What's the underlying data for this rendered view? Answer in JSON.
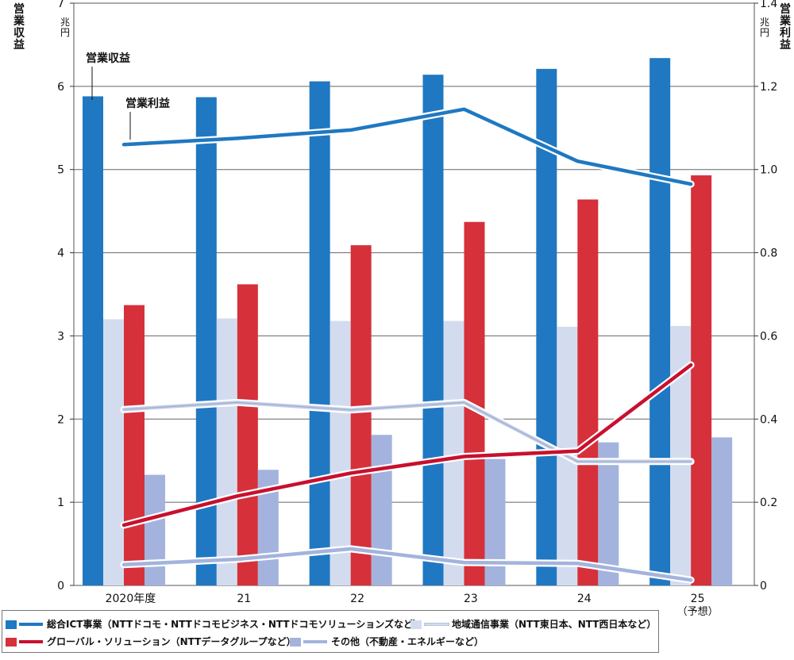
{
  "chart_data": {
    "type": "bar",
    "categories": [
      "2020年度",
      "21",
      "22",
      "23",
      "24",
      "25"
    ],
    "category_note": "（予想）",
    "left_axis": {
      "title": "営業収益",
      "unit": "兆円",
      "min": 0,
      "max": 7,
      "ticks": [
        "0",
        "1",
        "2",
        "3",
        "4",
        "5",
        "6",
        "7"
      ]
    },
    "right_axis": {
      "title": "営業利益",
      "unit": "兆円",
      "min": 0,
      "max": 1.4,
      "ticks": [
        "0",
        "0.2",
        "0.4",
        "0.6",
        "0.8",
        "1.0",
        "1.2",
        "1.4"
      ]
    },
    "grid": true,
    "revenue_series": [
      {
        "name": "総合ICT事業（NTTドコモ・NTTドコモビジネス・NTTドコモソリューションズなど）",
        "color": "#1f78c1",
        "values": [
          5.88,
          5.87,
          6.06,
          6.14,
          6.21,
          6.34
        ]
      },
      {
        "name": "地域通信事業（NTT東日本、NTT西日本など）",
        "color": "#d3dcef",
        "values": [
          3.2,
          3.21,
          3.18,
          3.18,
          3.11,
          3.12
        ]
      },
      {
        "name": "グローバル・ソリューション（NTTデータグループなど）",
        "color": "#d6303a",
        "values": [
          3.37,
          3.62,
          4.09,
          4.37,
          4.64,
          4.93
        ]
      },
      {
        "name": "その他（不動産・エネルギーなど）",
        "color": "#a3b3dd",
        "values": [
          1.33,
          1.39,
          1.81,
          1.52,
          1.72,
          1.78
        ]
      }
    ],
    "profit_series": [
      {
        "name": "総合ICT事業",
        "color": "#1f78c1",
        "values": [
          1.06,
          1.075,
          1.095,
          1.145,
          1.02,
          0.965
        ]
      },
      {
        "name": "地域通信事業",
        "color": "#c2cde6",
        "values": [
          0.423,
          0.44,
          0.422,
          0.44,
          0.298,
          0.298
        ]
      },
      {
        "name": "グローバル・ソリューション",
        "color": "#c8102e",
        "values": [
          0.145,
          0.215,
          0.27,
          0.31,
          0.323,
          0.53
        ]
      },
      {
        "name": "その他",
        "color": "#a3b3dd",
        "values": [
          0.05,
          0.063,
          0.088,
          0.055,
          0.053,
          0.013
        ]
      }
    ],
    "annotations": {
      "revenue_label": "営業収益",
      "profit_label": "営業利益"
    }
  },
  "legend": {
    "item1": "総合ICT事業（NTTドコモ・NTTドコモビジネス・NTTドコモソリューションズなど）",
    "item2": "地域通信事業（NTT東日本、NTT西日本など）",
    "item3": "グローバル・ソリューション（NTTデータグループなど）",
    "item4": "その他（不動産・エネルギーなど）"
  }
}
